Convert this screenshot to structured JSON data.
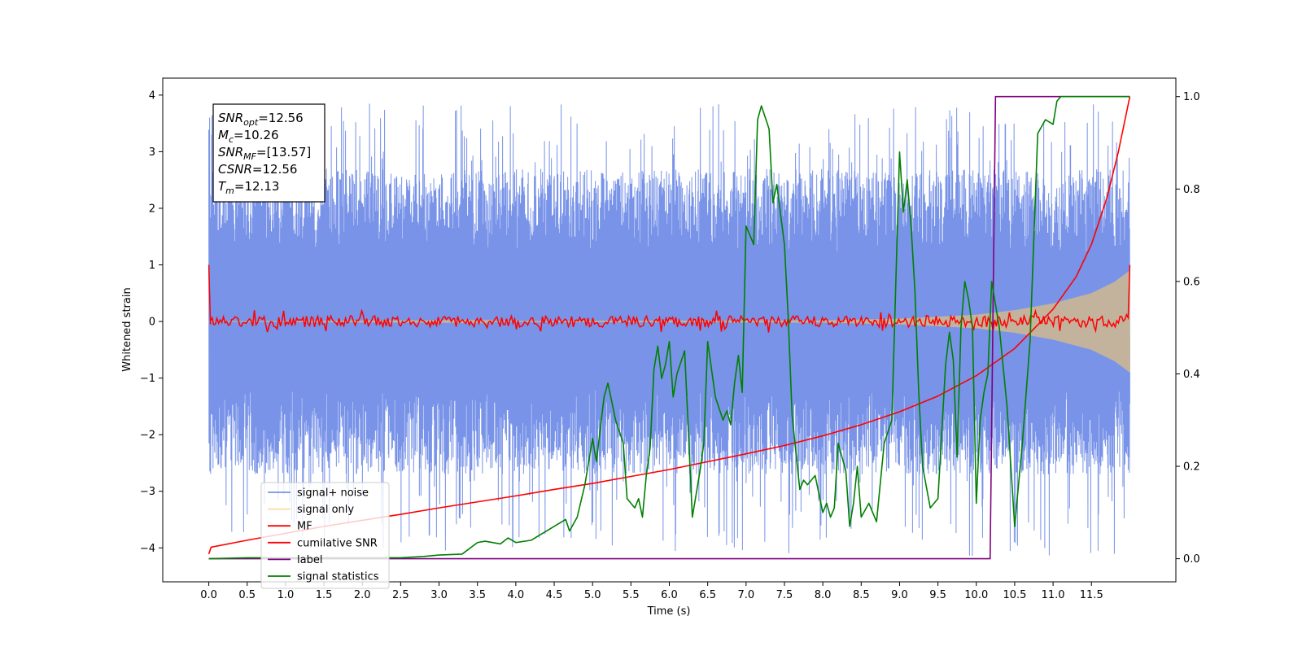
{
  "chart_data": {
    "type": "line",
    "xlabel": "Time (s)",
    "ylabel": "Whitened strain",
    "xlim": [
      -0.6,
      12.6
    ],
    "ylim_left": [
      -4.6,
      4.3
    ],
    "ylim_right": [
      -0.05,
      1.04
    ],
    "x_ticks": [
      0.0,
      0.5,
      1.0,
      1.5,
      2.0,
      2.5,
      3.0,
      3.5,
      4.0,
      4.5,
      5.0,
      5.5,
      6.0,
      6.5,
      7.0,
      7.5,
      8.0,
      8.5,
      9.0,
      9.5,
      10.0,
      10.5,
      11.0,
      11.5
    ],
    "x_tick_labels": [
      "0.0",
      "0.5",
      "1.0",
      "1.5",
      "2.0",
      "2.5",
      "3.0",
      "3.5",
      "4.0",
      "4.5",
      "5.0",
      "5.5",
      "6.0",
      "6.5",
      "7.0",
      "7.5",
      "8.0",
      "8.5",
      "9.0",
      "9.5",
      "10.0",
      "10.5",
      "11.0",
      "11.5"
    ],
    "y_ticks_left": [
      -4,
      -3,
      -2,
      -1,
      0,
      1,
      2,
      3,
      4
    ],
    "y_tick_labels_left": [
      "−4",
      "−3",
      "−2",
      "−1",
      "0",
      "1",
      "2",
      "3",
      "4"
    ],
    "y_ticks_right": [
      0.0,
      0.2,
      0.4,
      0.6,
      0.8,
      1.0
    ],
    "y_tick_labels_right": [
      "0.0",
      "0.2",
      "0.4",
      "0.6",
      "0.8",
      "1.0"
    ],
    "grid": false,
    "legend_position": "lower-left",
    "annotation": [
      {
        "base": "SNR",
        "sub": "opt",
        "rest": "=12.56"
      },
      {
        "base": "M",
        "sub": "c",
        "rest": "=10.26"
      },
      {
        "base": "SNR",
        "sub": "MF",
        "rest": "=[13.57]"
      },
      {
        "base": "CSNR",
        "sub": "",
        "rest": "=12.56"
      },
      {
        "base": "T",
        "sub": "m",
        "rest": "=12.13"
      }
    ],
    "series": [
      {
        "name": "signal+ noise",
        "color": "#6d8ae6",
        "axis": "left",
        "style": "noise",
        "x_range": [
          0.0,
          12.0
        ],
        "upper_typical": [
          1.2,
          2.7
        ],
        "lower_typical": [
          -1.2,
          -2.7
        ],
        "extreme": [
          -4.15,
          3.88
        ]
      },
      {
        "name": "signal only",
        "color": "#f5c86a",
        "axis": "left",
        "style": "chirp",
        "x_range": [
          0.0,
          12.0
        ],
        "amplitude_points": [
          [
            0.0,
            0.0
          ],
          [
            8.0,
            0.02
          ],
          [
            9.0,
            0.05
          ],
          [
            10.0,
            0.12
          ],
          [
            10.5,
            0.2
          ],
          [
            11.0,
            0.32
          ],
          [
            11.5,
            0.5
          ],
          [
            11.8,
            0.7
          ],
          [
            12.0,
            0.9
          ]
        ]
      },
      {
        "name": "MF",
        "color": "#ff0000",
        "axis": "left",
        "style": "mf",
        "x_range": [
          0.0,
          12.0
        ],
        "start_value": 1.0,
        "end_value": 1.0,
        "noise_amplitude": 0.1
      },
      {
        "name": "cumilative SNR",
        "color": "#ff0000",
        "axis": "right",
        "x": [
          0.0,
          0.03,
          0.5,
          1.0,
          1.5,
          2.0,
          2.5,
          3.0,
          3.5,
          4.0,
          4.5,
          5.0,
          5.5,
          6.0,
          6.5,
          7.0,
          7.5,
          8.0,
          8.5,
          9.0,
          9.5,
          10.0,
          10.5,
          11.0,
          11.3,
          11.5,
          11.7,
          11.85,
          12.0
        ],
        "y": [
          0.01,
          0.025,
          0.04,
          0.055,
          0.07,
          0.083,
          0.096,
          0.11,
          0.123,
          0.136,
          0.15,
          0.163,
          0.178,
          0.193,
          0.21,
          0.227,
          0.245,
          0.266,
          0.29,
          0.318,
          0.352,
          0.396,
          0.455,
          0.54,
          0.61,
          0.68,
          0.78,
          0.88,
          1.0
        ]
      },
      {
        "name": "label",
        "color": "#800080",
        "axis": "right",
        "x": [
          0.0,
          10.18,
          10.25,
          12.0
        ],
        "y": [
          0.0,
          0.0,
          1.0,
          1.0
        ]
      },
      {
        "name": "signal statistics",
        "color": "#008000",
        "axis": "right",
        "x": [
          0.0,
          0.5,
          1.0,
          1.5,
          2.0,
          2.5,
          2.8,
          3.0,
          3.3,
          3.5,
          3.6,
          3.8,
          3.9,
          4.0,
          4.2,
          4.3,
          4.4,
          4.5,
          4.6,
          4.65,
          4.7,
          4.8,
          4.9,
          5.0,
          5.05,
          5.1,
          5.15,
          5.2,
          5.3,
          5.4,
          5.45,
          5.55,
          5.6,
          5.65,
          5.7,
          5.75,
          5.8,
          5.85,
          5.9,
          5.95,
          6.0,
          6.05,
          6.1,
          6.2,
          6.3,
          6.4,
          6.45,
          6.5,
          6.6,
          6.7,
          6.75,
          6.8,
          6.85,
          6.9,
          6.95,
          7.0,
          7.1,
          7.15,
          7.2,
          7.3,
          7.35,
          7.4,
          7.5,
          7.55,
          7.6,
          7.7,
          7.75,
          7.8,
          7.9,
          8.0,
          8.05,
          8.1,
          8.15,
          8.2,
          8.3,
          8.35,
          8.4,
          8.45,
          8.5,
          8.6,
          8.7,
          8.8,
          8.9,
          9.0,
          9.05,
          9.1,
          9.15,
          9.2,
          9.25,
          9.3,
          9.4,
          9.5,
          9.6,
          9.65,
          9.7,
          9.75,
          9.8,
          9.85,
          9.9,
          9.95,
          10.0,
          10.05,
          10.1,
          10.15,
          10.2,
          10.3,
          10.4,
          10.5,
          10.6,
          10.7,
          10.8,
          10.9,
          11.0,
          11.05,
          11.1,
          11.15,
          11.2,
          11.3,
          11.4,
          11.5,
          11.7,
          12.0
        ],
        "y": [
          0.0,
          0.002,
          0.002,
          0.002,
          0.002,
          0.002,
          0.005,
          0.008,
          0.01,
          0.035,
          0.038,
          0.032,
          0.045,
          0.035,
          0.04,
          0.05,
          0.06,
          0.07,
          0.08,
          0.085,
          0.06,
          0.09,
          0.16,
          0.26,
          0.21,
          0.28,
          0.35,
          0.38,
          0.3,
          0.25,
          0.13,
          0.11,
          0.13,
          0.09,
          0.18,
          0.24,
          0.41,
          0.46,
          0.39,
          0.42,
          0.47,
          0.35,
          0.4,
          0.45,
          0.09,
          0.19,
          0.25,
          0.47,
          0.35,
          0.3,
          0.32,
          0.29,
          0.38,
          0.44,
          0.36,
          0.72,
          0.68,
          0.95,
          0.98,
          0.93,
          0.77,
          0.81,
          0.68,
          0.52,
          0.31,
          0.15,
          0.17,
          0.16,
          0.18,
          0.1,
          0.12,
          0.09,
          0.11,
          0.25,
          0.19,
          0.07,
          0.12,
          0.2,
          0.09,
          0.12,
          0.08,
          0.25,
          0.3,
          0.88,
          0.75,
          0.82,
          0.72,
          0.58,
          0.36,
          0.2,
          0.11,
          0.13,
          0.42,
          0.49,
          0.43,
          0.22,
          0.5,
          0.6,
          0.56,
          0.5,
          0.12,
          0.3,
          0.36,
          0.4,
          0.6,
          0.5,
          0.33,
          0.07,
          0.25,
          0.47,
          0.92,
          0.95,
          0.94,
          0.99,
          1.0,
          1.0,
          1.0,
          1.0,
          1.0,
          1.0,
          1.0,
          1.0
        ]
      }
    ]
  }
}
